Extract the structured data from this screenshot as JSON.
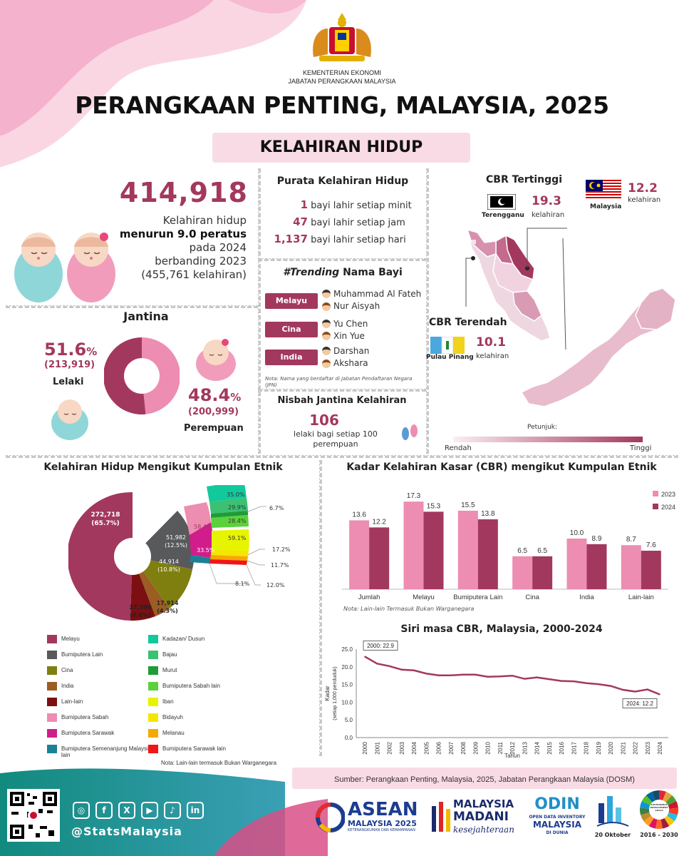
{
  "header": {
    "ministry": "KEMENTERIAN EKONOMI",
    "department": "JABATAN PERANGKAAN MALAYSIA",
    "title": "PERANGKAAN PENTING, MALAYSIA, 2025",
    "subtitle": "KELAHIRAN HIDUP"
  },
  "total": {
    "value": "414,918",
    "line1": "Kelahiran hidup",
    "line2": "menurun 9.0 peratus",
    "line3": "pada 2024",
    "line4": "berbanding 2023",
    "line5": "(455,761 kelahiran)"
  },
  "average": {
    "title": "Purata Kelahiran Hidup",
    "rows": [
      {
        "num": "1",
        "text": "bayi lahir setiap minit"
      },
      {
        "num": "47",
        "text": "bayi lahir setiap jam"
      },
      {
        "num": "1,137",
        "text": "bayi lahir setiap hari"
      }
    ]
  },
  "trending": {
    "title_italic": "#Trending",
    "title_rest": "Nama Bayi",
    "groups": [
      {
        "label": "Melayu",
        "boy": "Muhammad Al Fateh",
        "girl": "Nur Aisyah"
      },
      {
        "label": "Cina",
        "boy": "Yu Chen",
        "girl": "Xin Yue"
      },
      {
        "label": "India",
        "boy": "Darshan",
        "girl": "Akshara"
      }
    ],
    "note": "Nota: Nama yang berdaftar di Jabatan Pendaftaran Negara (JPN)"
  },
  "gender": {
    "title": "Jantina",
    "male_pct": "51.6",
    "male_count": "(213,919)",
    "male_label": "Lelaki",
    "female_pct": "48.4",
    "female_count": "(200,999)",
    "female_label": "Perempuan",
    "pct_sign": "%",
    "male_share": 51.6,
    "female_share": 48.4
  },
  "ratio": {
    "title": "Nisbah Jantina Kelahiran",
    "value": "106",
    "line1": "lelaki bagi setiap 100",
    "line2": "perempuan"
  },
  "map": {
    "high_title": "CBR Tertinggi",
    "high_state": "Terengganu",
    "high_value": "19.3",
    "high_unit": "kelahiran",
    "national_label": "Malaysia",
    "national_value": "12.2",
    "national_unit": "kelahiran",
    "low_title": "CBR Terendah",
    "low_state": "Pulau Pinang",
    "low_value": "10.1",
    "low_unit": "kelahiran",
    "legend_title": "Petunjuk:",
    "legend_low": "Rendah",
    "legend_high": "Tinggi"
  },
  "ethnic_pie": {
    "title": "Kelahiran Hidup Mengikut Kumpulan Etnik",
    "labels": {
      "melayu": "272,718",
      "melayu_pct": "(65.7%)",
      "bumi_lain": "51,982",
      "bumi_lain_pct": "(12.5%)",
      "cina": "44,914",
      "cina_pct": "(10.8%)",
      "india": "17,914",
      "india_pct": "(4.3%)",
      "lain": "27,390",
      "lain_pct": "(6.6%)",
      "sabah": "58.4%",
      "sarawak": "33.5%",
      "semenanjung_outer": "8.1%",
      "kadazan": "35.0%",
      "bajau": "29.9%",
      "murut": "6.7%",
      "bumi_sabah_lain": "28.4%",
      "iban": "59.1%",
      "bidayuh": "17.2%",
      "melanau": "11.7%",
      "sarawak_lain": "12.0%"
    },
    "legend": [
      {
        "label": "Melayu",
        "color": "#a3385e"
      },
      {
        "label": "Bumiputera Lain",
        "color": "#58595b"
      },
      {
        "label": "Cina",
        "color": "#7f7f10"
      },
      {
        "label": "India",
        "color": "#9b5d22"
      },
      {
        "label": "Lain-lain",
        "color": "#7b0f11"
      },
      {
        "label": "Bumiputera Sabah",
        "color": "#ec8db1"
      },
      {
        "label": "Bumiputera Sarawak",
        "color": "#d01d8b"
      },
      {
        "label": "Bumiputera Semenanjung Malaysia lain",
        "color": "#1a8297"
      },
      {
        "label": "Kadazan/ Dusun",
        "color": "#12c99c"
      },
      {
        "label": "Bajau",
        "color": "#3cc071"
      },
      {
        "label": "Murut",
        "color": "#1f9c37"
      },
      {
        "label": "Bumiputera Sabah lain",
        "color": "#5bd13c"
      },
      {
        "label": "Iban",
        "color": "#e6f400"
      },
      {
        "label": "Bidayuh",
        "color": "#f5e600"
      },
      {
        "label": "Melanau",
        "color": "#f5a800"
      },
      {
        "label": "Bumiputera Sarawak lain",
        "color": "#f11515"
      }
    ],
    "note": "Nota: Lain-lain termasuk Bukan Warganegara"
  },
  "chart_data": [
    {
      "type": "bar",
      "title": "Kadar Kelahiran Kasar (CBR) mengikut Kumpulan Etnik",
      "categories": [
        "Jumlah",
        "Melayu",
        "Bumiputera Lain",
        "Cina",
        "India",
        "Lain-lain"
      ],
      "series": [
        {
          "name": "2023",
          "values": [
            13.6,
            17.3,
            15.5,
            6.5,
            10.0,
            8.7
          ],
          "color": "#ec8db1"
        },
        {
          "name": "2024",
          "values": [
            12.2,
            15.3,
            13.8,
            6.5,
            8.9,
            7.6
          ],
          "color": "#a3385e"
        }
      ],
      "value_labels": {
        "2023": [
          "13.6",
          "17.3",
          "15.5",
          "6.5",
          "10.0",
          "8.7"
        ],
        "2024": [
          "12.2",
          "15.3",
          "13.8",
          "6.5",
          "8.9",
          "7.6"
        ]
      },
      "ylim": [
        0,
        20
      ],
      "legend_position": "top-right",
      "note": "Nota: Lain-lain Termasuk Bukan Warganegara"
    },
    {
      "type": "line",
      "title": "Siri masa CBR, Malaysia, 2000-2024",
      "x": [
        "2000",
        "2001",
        "2002",
        "2003",
        "2004",
        "2005",
        "2006",
        "2007",
        "2008",
        "2009",
        "2010",
        "2011",
        "2012",
        "2013",
        "2014",
        "2015",
        "2016",
        "2017",
        "2018",
        "2019",
        "2020",
        "2021",
        "2022",
        "2023",
        "2024"
      ],
      "values": [
        22.9,
        20.9,
        20.2,
        19.2,
        19.0,
        18.1,
        17.6,
        17.6,
        17.8,
        17.8,
        17.2,
        17.3,
        17.5,
        16.6,
        17.0,
        16.5,
        16.0,
        15.9,
        15.4,
        15.1,
        14.6,
        13.5,
        13.0,
        13.6,
        12.2
      ],
      "color": "#a3385e",
      "xlabel": "Tahun",
      "ylabel": "Kadar",
      "ylabel2": "(setiap 1,000 penduduk)",
      "ylim": [
        0,
        25
      ],
      "yticks": [
        "0.0",
        "5.0",
        "10.0",
        "15.0",
        "20.0",
        "25.0"
      ],
      "annotations": [
        "2000: 22.9",
        "2024: 12.2"
      ]
    }
  ],
  "footer": {
    "source": "Sumber: Perangkaan Penting, Malaysia, 2025, Jabatan Perangkaan Malaysia (DOSM)",
    "handle": "@StatsMalaysia",
    "asean": "ASEAN",
    "asean_sub": "MALAYSIA 2025",
    "asean_tag": "KETERANGKUMAN DAN KEMAMPANAN",
    "madani1": "MALAYSIA",
    "madani2": "MADANI",
    "madani3": "kesejahteraan",
    "odin": "ODIN",
    "odin_sub1": "OPEN DATA INVENTORY",
    "odin_sub2": "MALAYSIA",
    "odin_sub3": "DI DUNIA",
    "date": "20 Oktober",
    "sdg_years": "2016 - 2030",
    "sdg_label": "SUSTAINABLE DEVELOPMENT GOALS"
  }
}
